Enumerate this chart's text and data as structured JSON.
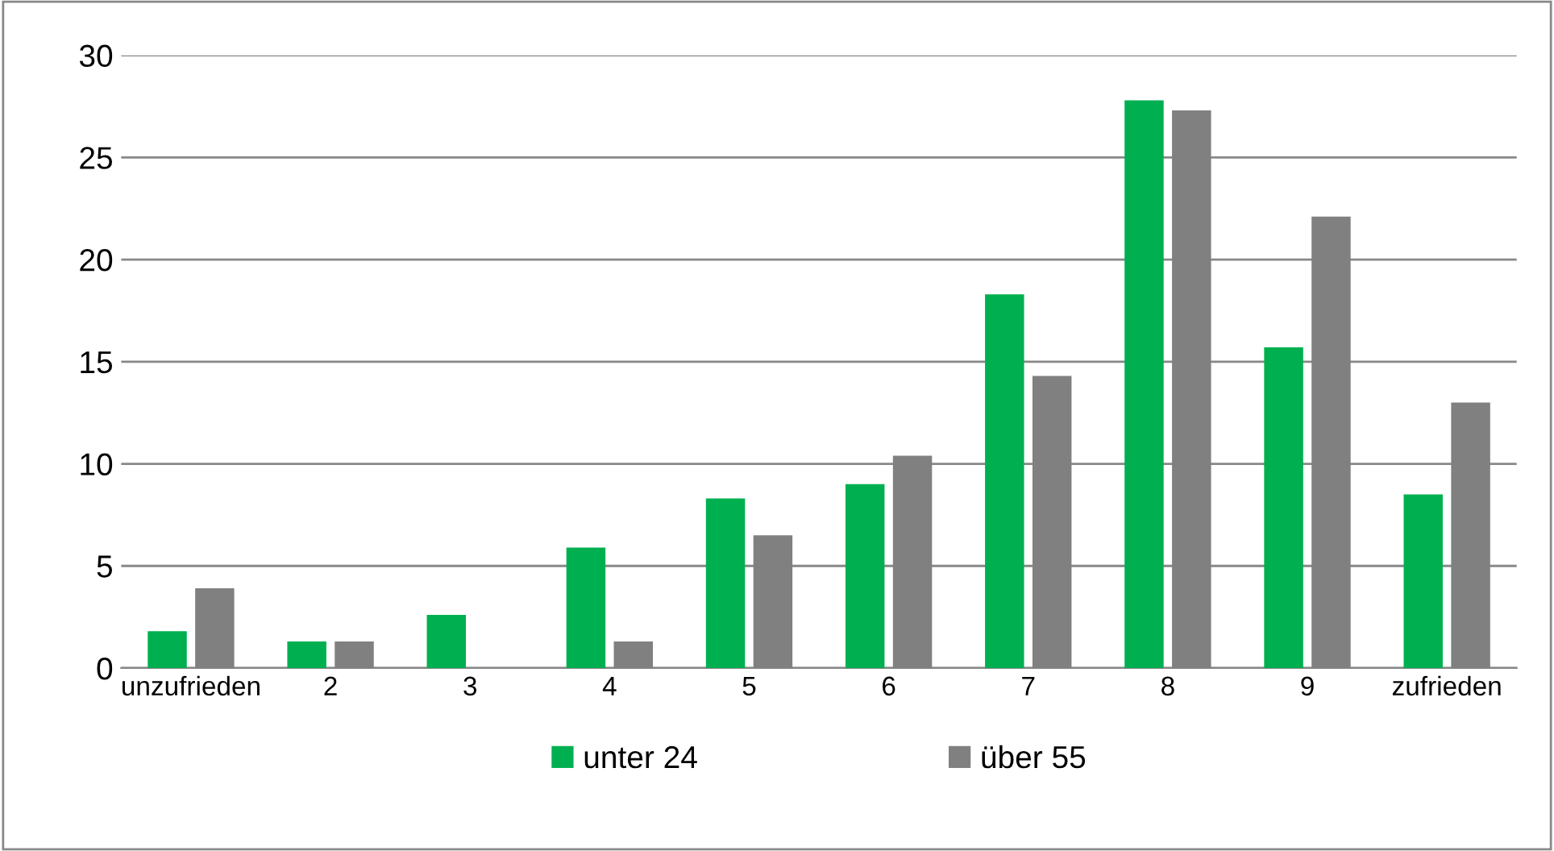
{
  "chart_data": {
    "type": "bar",
    "categories": [
      "unzufrieden",
      "2",
      "3",
      "4",
      "5",
      "6",
      "7",
      "8",
      "9",
      "zufrieden"
    ],
    "series": [
      {
        "name": "unter 24",
        "color": "#00b050",
        "values": [
          1.8,
          1.3,
          2.6,
          5.9,
          8.3,
          9.0,
          18.3,
          27.8,
          15.7,
          8.5
        ]
      },
      {
        "name": "über 55",
        "color": "#808080",
        "values": [
          3.9,
          1.3,
          0,
          1.3,
          6.5,
          10.4,
          14.3,
          27.3,
          22.1,
          13.0
        ]
      }
    ],
    "ylim": [
      0,
      30
    ],
    "yticks": [
      0,
      5,
      10,
      15,
      20,
      25,
      30
    ],
    "grid": "y",
    "legend": "bottom"
  }
}
